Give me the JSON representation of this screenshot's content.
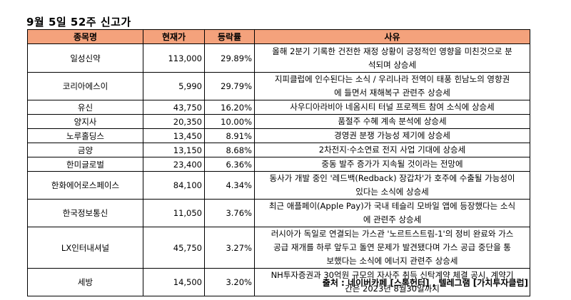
{
  "title": "9월 5일 52주 신고가",
  "headers": [
    "종목명",
    "현재가",
    "등락률",
    "사유"
  ],
  "rows": [
    {
      "name": "일성신약",
      "price": "113,000",
      "change": "29.89%",
      "reason": "올해 2분기 기록한 건전한 재정 상황이 긍정적인 영향을 미친것으로 분\n석되며 상승세",
      "h": 40
    },
    {
      "name": "코리아에스이",
      "price": "5,990",
      "change": "29.79%",
      "reason": "지피클럽에 인수된다는 소식 / 우리나라 전역이 태풍 힌남노의 영향권\n에 들면서 재해복구 관련주 상승세",
      "h": 38
    },
    {
      "name": "유신",
      "price": "43,750",
      "change": "16.20%",
      "reason": "사우디아라비아 네옴시티 터널 프로젝트 참여 소식에 상승세",
      "h": 19
    },
    {
      "name": "양지사",
      "price": "20,350",
      "change": "10.00%",
      "reason": "품절주 수혜 계속 분석에 상승세",
      "h": 19
    },
    {
      "name": "노루홀딩스",
      "price": "13,450",
      "change": "8.91%",
      "reason": "경영권 분쟁 가능성 제기에 상승세",
      "h": 19
    },
    {
      "name": "금양",
      "price": "13,150",
      "change": "8.68%",
      "reason": "2차전지·수소연료 전지 사업 기대에 상승세",
      "h": 19
    },
    {
      "name": "한미글로벌",
      "price": "23,400",
      "change": "6.36%",
      "reason": "중동 발주 증가가 지속될 것이라는 전망에",
      "h": 19
    },
    {
      "name": "한화에어로스페이스",
      "price": "84,100",
      "change": "4.34%",
      "reason": "동사가 개발 중인 '레드백(Redback) 장갑차'가 호주에 수출될 가능성이\n있다는 소식에 상승세",
      "h": 38
    },
    {
      "name": "한국정보통신",
      "price": "11,050",
      "change": "3.76%",
      "reason": "최근 애플페이(Apple Pay)가 국내 테슬리 모바일 앱에 등장했다는 소식\n에 관련주 상승세",
      "h": 38
    },
    {
      "name": "LX인터내셔널",
      "price": "45,750",
      "change": "3.27%",
      "reason": "러시아가 독일로 연결되는 가스관 '노르트스트림-1'의 정비 완료와 가스\n공급 재개를 하루 앞두고 돌연 문제가 발견됐다며 가스 공급 중단을 통\n보했다는 소식에 에너지 관련주 상승세",
      "h": 58
    },
    {
      "name": "세방",
      "price": "14,500",
      "change": "3.20%",
      "reason": "NH투자증권과 30억원 규모의 자사주 취득 신탁계약 체결 공시, 계약기\n간은 2023년 8월30일까지",
      "h": 38
    }
  ],
  "source": "출처 : 네이버카페 [스톡헌터] , 텔레그램 [가치투자클럽]"
}
